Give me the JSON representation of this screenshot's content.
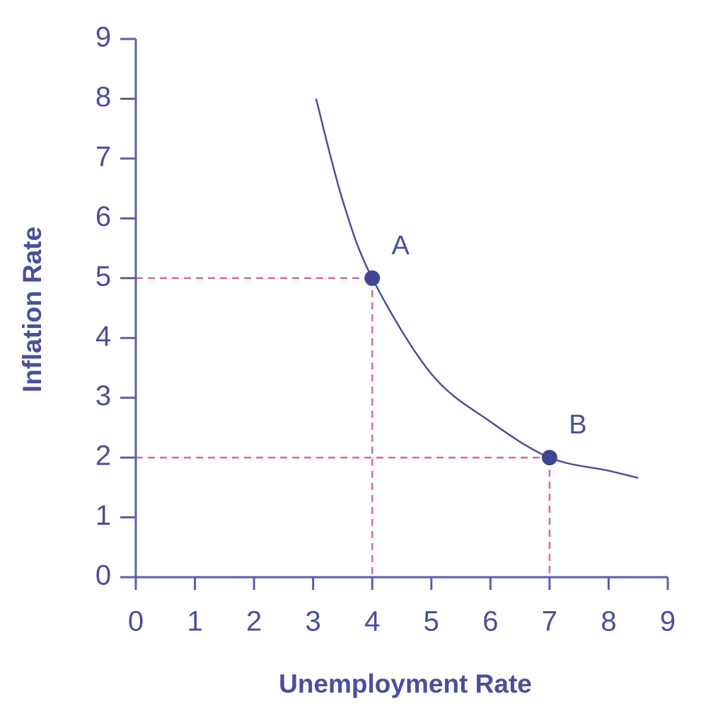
{
  "chart_data": {
    "type": "line",
    "x_label": "Unemployment Rate",
    "y_label": "Inflation Rate",
    "x": [
      3.05,
      3.5,
      4,
      5,
      6,
      7,
      8,
      8.5
    ],
    "values": [
      8,
      6.3,
      5,
      3.4,
      2.6,
      2,
      1.78,
      1.66
    ],
    "color": "#4b4f9e",
    "points": [
      {
        "label": "A",
        "x": 4,
        "y": 5
      },
      {
        "label": "B",
        "x": 7,
        "y": 2
      }
    ],
    "point_color": "#3f4694",
    "ref_line_color": "#d9679e",
    "axis_color": "#5a5fa6",
    "xlim": [
      0,
      9
    ],
    "ylim": [
      0,
      9
    ],
    "xticks": [
      0,
      1,
      2,
      3,
      4,
      5,
      6,
      7,
      8,
      9
    ],
    "yticks": [
      0,
      1,
      2,
      3,
      4,
      5,
      6,
      7,
      8,
      9
    ]
  }
}
